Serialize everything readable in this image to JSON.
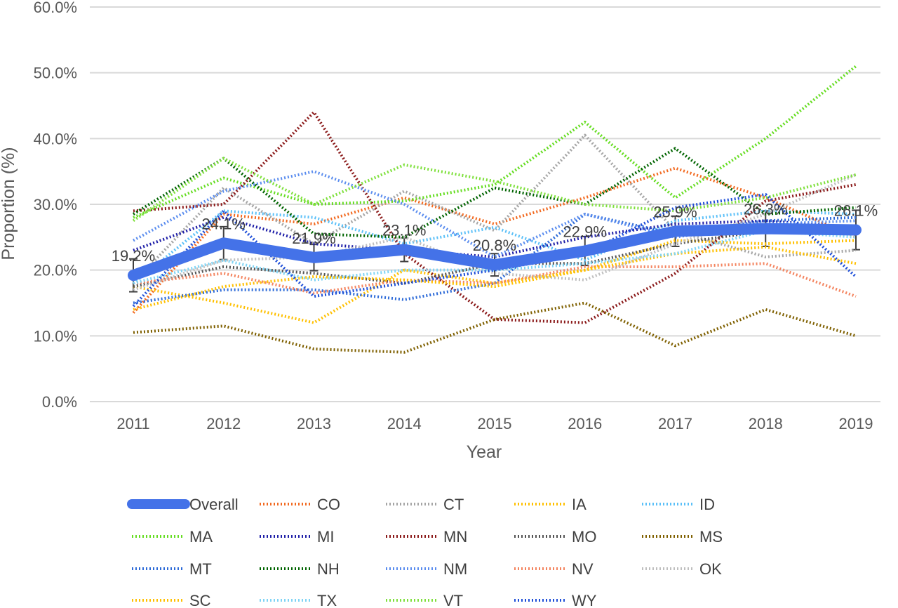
{
  "chart_data": {
    "type": "line",
    "xlabel": "Year",
    "ylabel": "Proportion (%)",
    "ylim": [
      0,
      60
    ],
    "y_ticks": [
      "0.0%",
      "10.0%",
      "20.0%",
      "30.0%",
      "40.0%",
      "50.0%",
      "60.0%"
    ],
    "grid": "horizontal",
    "legend_position": "bottom",
    "categories": [
      "2011",
      "2012",
      "2013",
      "2014",
      "2015",
      "2016",
      "2017",
      "2018",
      "2019"
    ],
    "series": [
      {
        "name": "Overall",
        "color": "#4472E8",
        "style": "thick-solid",
        "values": [
          19.2,
          24.1,
          21.9,
          23.1,
          20.8,
          22.9,
          25.9,
          26.3,
          26.1
        ],
        "labels": [
          "19.2%",
          "24.1%",
          "21.9%",
          "23.1%",
          "20.8%",
          "22.9%",
          "25.9%",
          "26.3%",
          "26.1%"
        ],
        "error": [
          2.5,
          2.5,
          2.0,
          1.8,
          1.7,
          2.2,
          2.3,
          2.7,
          3.0
        ]
      },
      {
        "name": "CO",
        "color": "#F26A21",
        "values": [
          13.5,
          28.5,
          27.0,
          31.0,
          27.0,
          31.0,
          35.5,
          31.0,
          25.0
        ]
      },
      {
        "name": "CT",
        "color": "#A5A5A5",
        "values": [
          18.0,
          32.5,
          24.0,
          32.0,
          26.0,
          40.5,
          26.0,
          22.0,
          23.0
        ]
      },
      {
        "name": "IA",
        "color": "#FFC000",
        "values": [
          17.5,
          15.0,
          12.0,
          20.0,
          18.0,
          20.0,
          24.5,
          24.0,
          24.5
        ]
      },
      {
        "name": "ID",
        "color": "#5BC0F8",
        "values": [
          18.0,
          29.0,
          28.0,
          24.0,
          26.5,
          21.5,
          27.5,
          29.0,
          28.5
        ]
      },
      {
        "name": "MA",
        "color": "#66DD22",
        "values": [
          28.0,
          34.0,
          30.0,
          30.5,
          33.0,
          42.5,
          31.0,
          40.0,
          51.0
        ]
      },
      {
        "name": "MI",
        "color": "#1F1FA8",
        "values": [
          23.0,
          28.0,
          24.0,
          23.0,
          22.0,
          25.0,
          27.0,
          27.5,
          26.5
        ]
      },
      {
        "name": "MN",
        "color": "#8B1A1A",
        "values": [
          29.0,
          30.0,
          44.0,
          22.5,
          12.5,
          12.0,
          19.5,
          30.5,
          33.0
        ]
      },
      {
        "name": "MO",
        "color": "#555555",
        "values": [
          17.5,
          20.5,
          19.5,
          18.0,
          21.0,
          21.0,
          24.0,
          26.0,
          26.5
        ]
      },
      {
        "name": "MS",
        "color": "#7F6000",
        "values": [
          10.5,
          11.5,
          8.0,
          7.5,
          12.5,
          15.0,
          8.5,
          14.0,
          10.0
        ]
      },
      {
        "name": "MT",
        "color": "#2E6BD8",
        "values": [
          15.0,
          17.0,
          17.0,
          15.5,
          18.0,
          28.5,
          25.5,
          27.5,
          28.0
        ]
      },
      {
        "name": "NH",
        "color": "#006400",
        "values": [
          28.5,
          37.0,
          25.5,
          25.0,
          32.5,
          30.0,
          38.5,
          28.5,
          29.5
        ]
      },
      {
        "name": "NM",
        "color": "#5B8DEF",
        "values": [
          24.5,
          32.0,
          35.0,
          30.0,
          22.0,
          28.5,
          25.0,
          27.0,
          27.5
        ]
      },
      {
        "name": "NV",
        "color": "#F4845F",
        "values": [
          18.0,
          19.5,
          16.5,
          18.5,
          18.0,
          20.5,
          20.5,
          21.0,
          16.0
        ]
      },
      {
        "name": "OK",
        "color": "#BFBFBF",
        "values": [
          17.0,
          21.5,
          22.0,
          25.0,
          19.5,
          18.5,
          24.0,
          28.5,
          34.5
        ]
      },
      {
        "name": "SC",
        "color": "#FFC000",
        "values": [
          14.0,
          17.5,
          19.0,
          18.5,
          17.5,
          20.0,
          22.5,
          23.5,
          21.0
        ]
      },
      {
        "name": "TX",
        "color": "#7FD4F5",
        "values": [
          18.0,
          21.5,
          18.5,
          20.0,
          20.0,
          21.0,
          22.5,
          26.0,
          25.0
        ]
      },
      {
        "name": "VT",
        "color": "#7FE03C",
        "values": [
          27.5,
          37.0,
          30.0,
          36.0,
          33.5,
          30.0,
          29.0,
          31.0,
          34.5
        ]
      },
      {
        "name": "WY",
        "color": "#1F4FD8",
        "values": [
          14.5,
          29.0,
          16.0,
          18.0,
          20.0,
          22.5,
          29.5,
          31.5,
          19.0
        ]
      }
    ]
  }
}
